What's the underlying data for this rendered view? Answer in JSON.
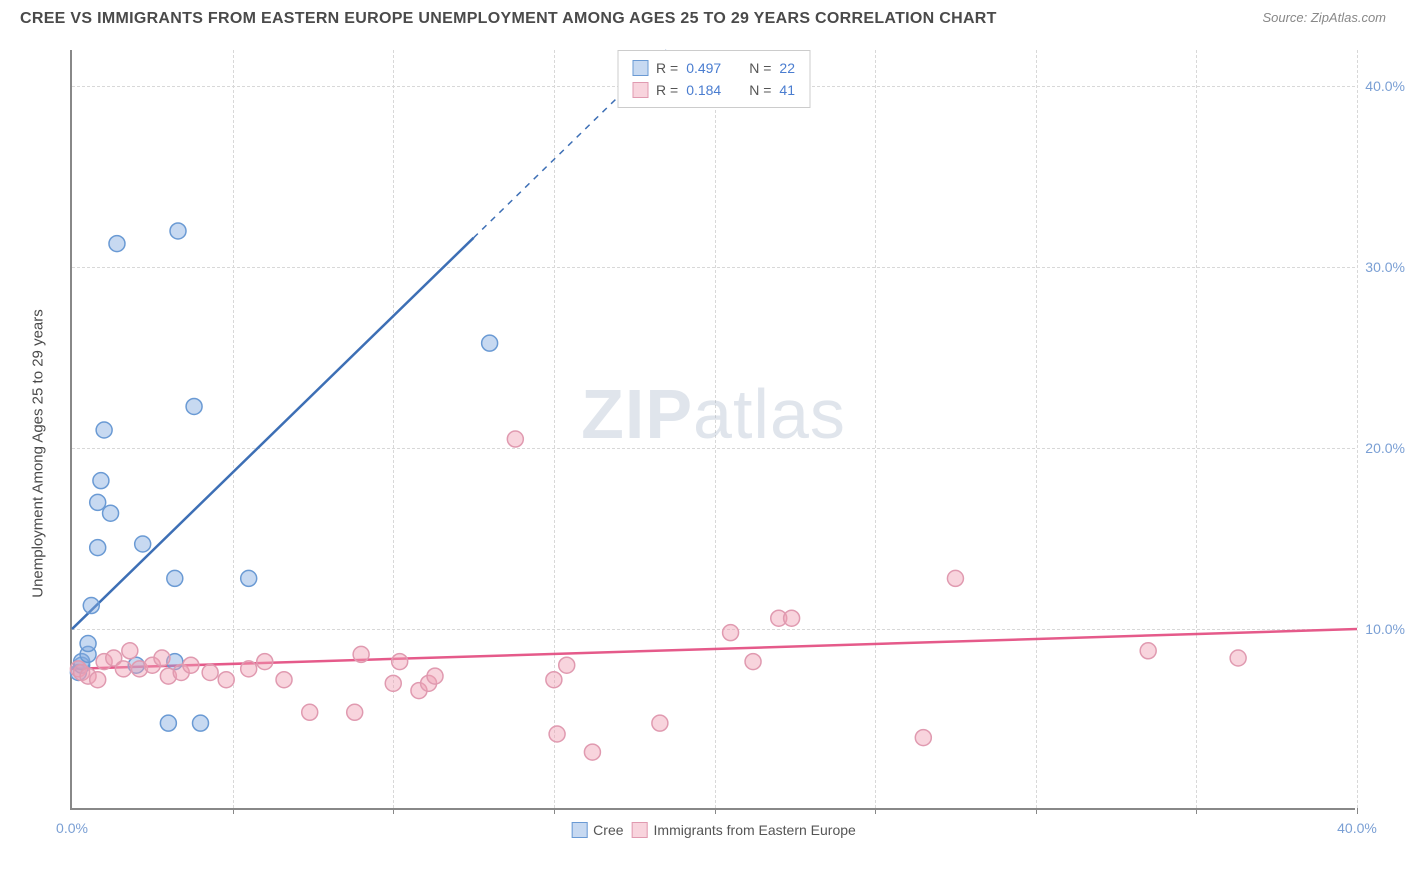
{
  "title": "CREE VS IMMIGRANTS FROM EASTERN EUROPE UNEMPLOYMENT AMONG AGES 25 TO 29 YEARS CORRELATION CHART",
  "source": "Source: ZipAtlas.com",
  "y_axis_label": "Unemployment Among Ages 25 to 29 years",
  "watermark_zip": "ZIP",
  "watermark_atlas": "atlas",
  "chart": {
    "type": "scatter",
    "xlim": [
      0,
      40
    ],
    "ylim": [
      0,
      42
    ],
    "x_ticks": [
      0,
      5,
      10,
      15,
      20,
      25,
      30,
      35,
      40
    ],
    "x_tick_labels": {
      "0": "0.0%",
      "40": "40.0%"
    },
    "y_ticks": [
      10,
      20,
      30,
      40
    ],
    "y_tick_labels": {
      "10": "10.0%",
      "20": "20.0%",
      "30": "30.0%",
      "40": "40.0%"
    },
    "grid_color": "#d8d8d8",
    "axis_color": "#888888",
    "background_color": "#ffffff",
    "marker_radius": 8,
    "marker_stroke_width": 1.5,
    "line_width": 2.5,
    "series": [
      {
        "name": "Cree",
        "color_fill": "rgba(130,170,225,0.45)",
        "color_stroke": "#6a9ad4",
        "line_color": "#3d6fb5",
        "R": "0.497",
        "N": "22",
        "points": [
          [
            0.2,
            7.6
          ],
          [
            0.3,
            8.0
          ],
          [
            0.3,
            8.2
          ],
          [
            0.5,
            8.6
          ],
          [
            0.5,
            9.2
          ],
          [
            0.6,
            11.3
          ],
          [
            0.8,
            14.5
          ],
          [
            0.8,
            17.0
          ],
          [
            0.9,
            18.2
          ],
          [
            1.0,
            21.0
          ],
          [
            1.2,
            16.4
          ],
          [
            1.4,
            31.3
          ],
          [
            2.0,
            8.0
          ],
          [
            2.2,
            14.7
          ],
          [
            3.0,
            4.8
          ],
          [
            3.3,
            32.0
          ],
          [
            3.2,
            12.8
          ],
          [
            3.2,
            8.2
          ],
          [
            3.8,
            22.3
          ],
          [
            4.0,
            4.8
          ],
          [
            5.5,
            12.8
          ],
          [
            13.0,
            25.8
          ]
        ],
        "trend": {
          "x1": 0,
          "y1": 10.0,
          "x2": 18.5,
          "y2": 42.0,
          "dash_after_x": 12.5
        }
      },
      {
        "name": "Immigrants from Eastern Europe",
        "color_fill": "rgba(240,160,180,0.45)",
        "color_stroke": "#e09ab0",
        "line_color": "#e55a8a",
        "R": "0.184",
        "N": "41",
        "points": [
          [
            0.2,
            7.8
          ],
          [
            0.3,
            7.6
          ],
          [
            0.5,
            7.4
          ],
          [
            0.8,
            7.2
          ],
          [
            1.0,
            8.2
          ],
          [
            1.3,
            8.4
          ],
          [
            1.6,
            7.8
          ],
          [
            1.8,
            8.8
          ],
          [
            2.1,
            7.8
          ],
          [
            2.5,
            8.0
          ],
          [
            2.8,
            8.4
          ],
          [
            3.0,
            7.4
          ],
          [
            3.4,
            7.6
          ],
          [
            3.7,
            8.0
          ],
          [
            4.3,
            7.6
          ],
          [
            4.8,
            7.2
          ],
          [
            5.5,
            7.8
          ],
          [
            6.0,
            8.2
          ],
          [
            6.6,
            7.2
          ],
          [
            7.4,
            5.4
          ],
          [
            8.8,
            5.4
          ],
          [
            9.0,
            8.6
          ],
          [
            10.0,
            7.0
          ],
          [
            10.2,
            8.2
          ],
          [
            10.8,
            6.6
          ],
          [
            11.1,
            7.0
          ],
          [
            11.3,
            7.4
          ],
          [
            13.8,
            20.5
          ],
          [
            15.0,
            7.2
          ],
          [
            15.1,
            4.2
          ],
          [
            15.4,
            8.0
          ],
          [
            16.2,
            3.2
          ],
          [
            18.3,
            4.8
          ],
          [
            20.5,
            9.8
          ],
          [
            21.2,
            8.2
          ],
          [
            22.0,
            10.6
          ],
          [
            22.4,
            10.6
          ],
          [
            26.5,
            4.0
          ],
          [
            27.5,
            12.8
          ],
          [
            33.5,
            8.8
          ],
          [
            36.3,
            8.4
          ]
        ],
        "trend": {
          "x1": 0,
          "y1": 7.8,
          "x2": 40,
          "y2": 10.0
        }
      }
    ]
  },
  "legend_top_label_R": "R =",
  "legend_top_label_N": "N =",
  "legend_bottom": [
    {
      "label": "Cree",
      "fill": "rgba(130,170,225,0.45)",
      "stroke": "#6a9ad4"
    },
    {
      "label": "Immigrants from Eastern Europe",
      "fill": "rgba(240,160,180,0.45)",
      "stroke": "#e09ab0"
    }
  ]
}
